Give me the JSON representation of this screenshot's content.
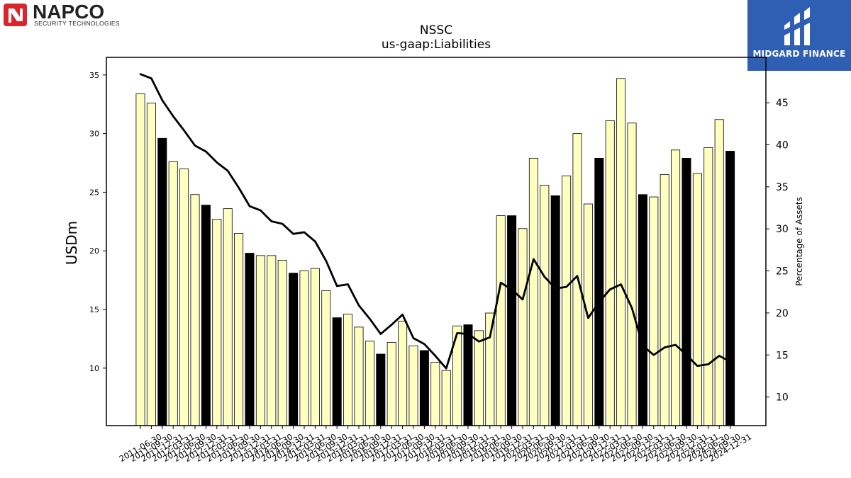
{
  "logos": {
    "left_name": "NAPCO",
    "left_tagline": "SECURITY TECHNOLOGIES",
    "right_name": "MIDGARD FINANCE"
  },
  "chart_data": {
    "type": "bar",
    "title": "NSSC",
    "subtitle": "us-gaap:Liabilities",
    "ylabel": "USDm",
    "y2label": "Percentage of Assets",
    "ylim": [
      5.1,
      36.5
    ],
    "y2lim": [
      6.6,
      50.4
    ],
    "yticks": [
      10,
      15,
      20,
      25,
      30,
      35
    ],
    "y2ticks": [
      10,
      15,
      20,
      25,
      30,
      35,
      40,
      45
    ],
    "categories": [
      "2011-06-30",
      "2011-09-30",
      "2011-12-31",
      "2012-03-31",
      "2012-06-30",
      "2012-09-30",
      "2012-12-31",
      "2013-03-31",
      "2013-06-30",
      "2013-09-30",
      "2013-12-31",
      "2014-03-31",
      "2014-06-30",
      "2014-09-30",
      "2014-12-31",
      "2015-03-31",
      "2015-06-30",
      "2015-09-30",
      "2015-12-31",
      "2016-03-31",
      "2016-06-30",
      "2016-09-30",
      "2016-12-31",
      "2017-03-31",
      "2017-06-30",
      "2017-09-30",
      "2017-12-31",
      "2018-03-31",
      "2018-06-30",
      "2018-09-30",
      "2018-12-31",
      "2019-03-31",
      "2019-06-30",
      "2019-09-30",
      "2019-12-31",
      "2020-03-31",
      "2020-06-30",
      "2020-09-30",
      "2020-12-31",
      "2021-03-31",
      "2021-06-30",
      "2021-09-30",
      "2021-12-31",
      "2022-03-31",
      "2022-06-30",
      "2022-09-30",
      "2022-12-31",
      "2023-03-31",
      "2023-06-30",
      "2023-09-30",
      "2023-12-31",
      "2024-03-31",
      "2024-06-30",
      "2024-09-30",
      "2024-12-31"
    ],
    "series": [
      {
        "type": "bar",
        "unit": "USDm",
        "colors": {
          "default": "#ffffc0",
          "q3": "#000000"
        },
        "highlight": [
          false,
          false,
          true,
          false,
          false,
          false,
          true,
          false,
          false,
          false,
          true,
          false,
          false,
          false,
          true,
          false,
          false,
          false,
          true,
          false,
          false,
          false,
          true,
          false,
          false,
          false,
          true,
          false,
          false,
          false,
          true,
          false,
          false,
          false,
          true,
          false,
          false,
          false,
          true,
          false,
          false,
          false,
          true,
          false,
          false,
          false,
          true,
          false,
          false,
          false,
          true,
          false,
          false,
          false,
          true
        ],
        "values": [
          33.4,
          32.6,
          29.6,
          27.6,
          27.0,
          24.8,
          23.9,
          22.7,
          23.6,
          21.5,
          19.8,
          19.6,
          19.6,
          19.2,
          18.1,
          18.3,
          18.5,
          16.6,
          14.3,
          14.6,
          13.5,
          12.3,
          11.2,
          12.2,
          14.0,
          11.9,
          11.5,
          10.5,
          9.8,
          13.6,
          13.7,
          13.2,
          14.7,
          23.0,
          23.0,
          21.9,
          27.9,
          25.6,
          24.7,
          26.4,
          30.0,
          24.0,
          27.9,
          31.1,
          34.7,
          30.9,
          24.8,
          24.6,
          26.5,
          28.6,
          27.9,
          26.6,
          28.8,
          31.2,
          28.5
        ]
      },
      {
        "type": "line",
        "unit": "Percentage of Assets",
        "color": "#000000",
        "values": [
          48.4,
          47.9,
          45.3,
          43.4,
          41.7,
          39.9,
          39.2,
          37.9,
          36.9,
          34.9,
          32.7,
          32.2,
          30.9,
          30.6,
          29.4,
          29.6,
          28.5,
          26.2,
          23.2,
          23.4,
          20.9,
          19.3,
          17.5,
          18.6,
          19.8,
          17.0,
          16.3,
          14.9,
          13.4,
          17.6,
          17.5,
          16.6,
          17.1,
          23.6,
          22.8,
          21.6,
          26.4,
          24.3,
          22.9,
          23.1,
          24.4,
          19.4,
          21.3,
          22.8,
          23.4,
          20.6,
          16.1,
          15.0,
          15.9,
          16.2,
          15.0,
          13.7,
          13.9,
          14.9,
          14.2
        ]
      }
    ],
    "grid": false,
    "legend": "none"
  }
}
